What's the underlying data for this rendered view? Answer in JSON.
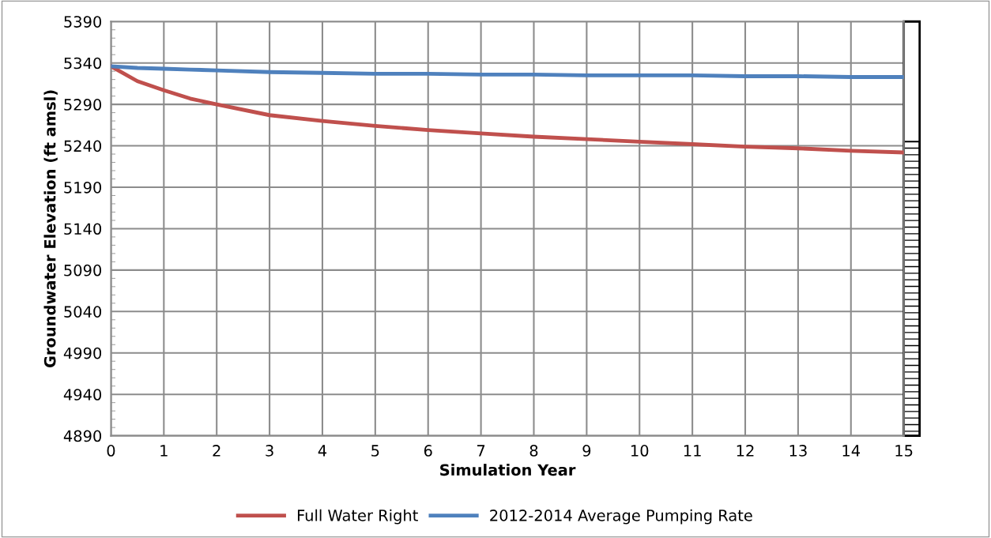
{
  "chart_data": {
    "type": "line",
    "xlabel": "Simulation Year",
    "ylabel": "Groundwater Elevation (ft amsl)",
    "x": [
      0,
      0.5,
      1,
      1.5,
      2,
      3,
      4,
      5,
      6,
      7,
      8,
      9,
      10,
      11,
      12,
      13,
      14,
      15
    ],
    "series": [
      {
        "name": "Full Water Right",
        "color": "#c0504d",
        "values": [
          5336,
          5318,
          5307,
          5297,
          5290,
          5277,
          5270,
          5264,
          5259,
          5255,
          5251,
          5248,
          5245,
          5242,
          5239,
          5237,
          5234,
          5232
        ]
      },
      {
        "name": "2012-2014 Average Pumping Rate",
        "color": "#4f81bd",
        "values": [
          5336,
          5334,
          5333,
          5332,
          5331,
          5329,
          5328,
          5327,
          5327,
          5326,
          5326,
          5325,
          5325,
          5325,
          5324,
          5324,
          5323,
          5323
        ]
      }
    ],
    "xlim": [
      0,
      15
    ],
    "xticks": [
      0,
      1,
      2,
      3,
      4,
      5,
      6,
      7,
      8,
      9,
      10,
      11,
      12,
      13,
      14,
      15
    ],
    "ylim": [
      4890,
      5390
    ],
    "yticks": [
      4890,
      4940,
      4990,
      5040,
      5090,
      5140,
      5190,
      5240,
      5290,
      5340,
      5390
    ],
    "grid": true,
    "legend": "bottom",
    "marker": "none",
    "line_style": "solid"
  }
}
